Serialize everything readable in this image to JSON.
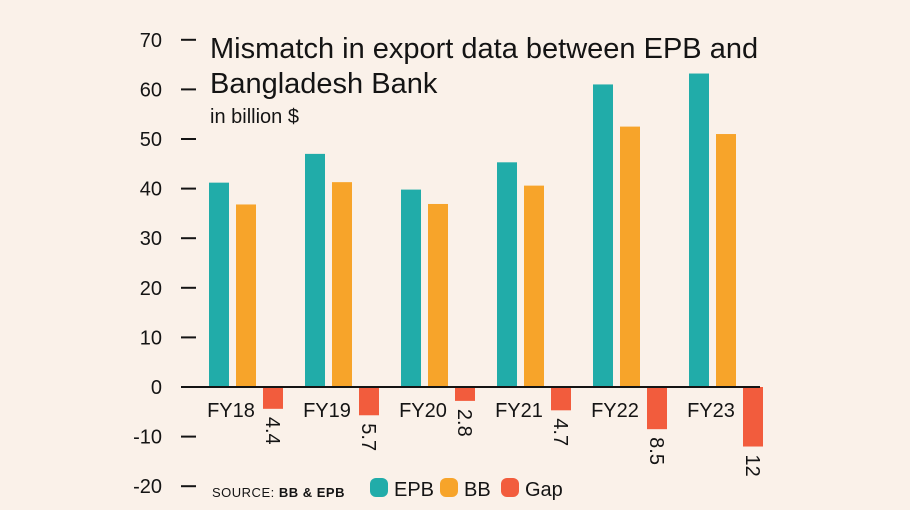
{
  "chart_data": {
    "type": "bar",
    "title": "Mismatch in export data between EPB and Bangladesh Bank",
    "title_lines": [
      "Mismatch in export data between EPB and",
      "Bangladesh Bank"
    ],
    "subtitle": "in billion $",
    "categories": [
      "FY18",
      "FY19",
      "FY20",
      "FY21",
      "FY22",
      "FY23"
    ],
    "series": [
      {
        "name": "EPB",
        "color": "#21aca9",
        "values": [
          41.2,
          47.0,
          39.8,
          45.3,
          61.0,
          63.2
        ]
      },
      {
        "name": "BB",
        "color": "#f7a42a",
        "values": [
          36.8,
          41.3,
          36.9,
          40.6,
          52.5,
          51.0
        ]
      },
      {
        "name": "Gap",
        "color": "#f25c3d",
        "values": [
          -4.4,
          -5.7,
          -2.8,
          -4.7,
          -8.5,
          -12
        ]
      }
    ],
    "gap_labels": [
      "4.4",
      "5.7",
      "2.8",
      "4.7",
      "8.5",
      "12"
    ],
    "ylim": [
      -20,
      70
    ],
    "yticks": [
      "70",
      "60",
      "50",
      "40",
      "30",
      "20",
      "10",
      "0",
      "-10",
      "-20"
    ],
    "ytick_values": [
      70,
      60,
      50,
      40,
      30,
      20,
      10,
      0,
      -10,
      -20
    ],
    "legend_position": "bottom",
    "grid": false
  },
  "source": {
    "label": "SOURCE: ",
    "value": "BB & EPB"
  },
  "colors": {
    "background": "#faf1e9",
    "axis": "#141414"
  }
}
